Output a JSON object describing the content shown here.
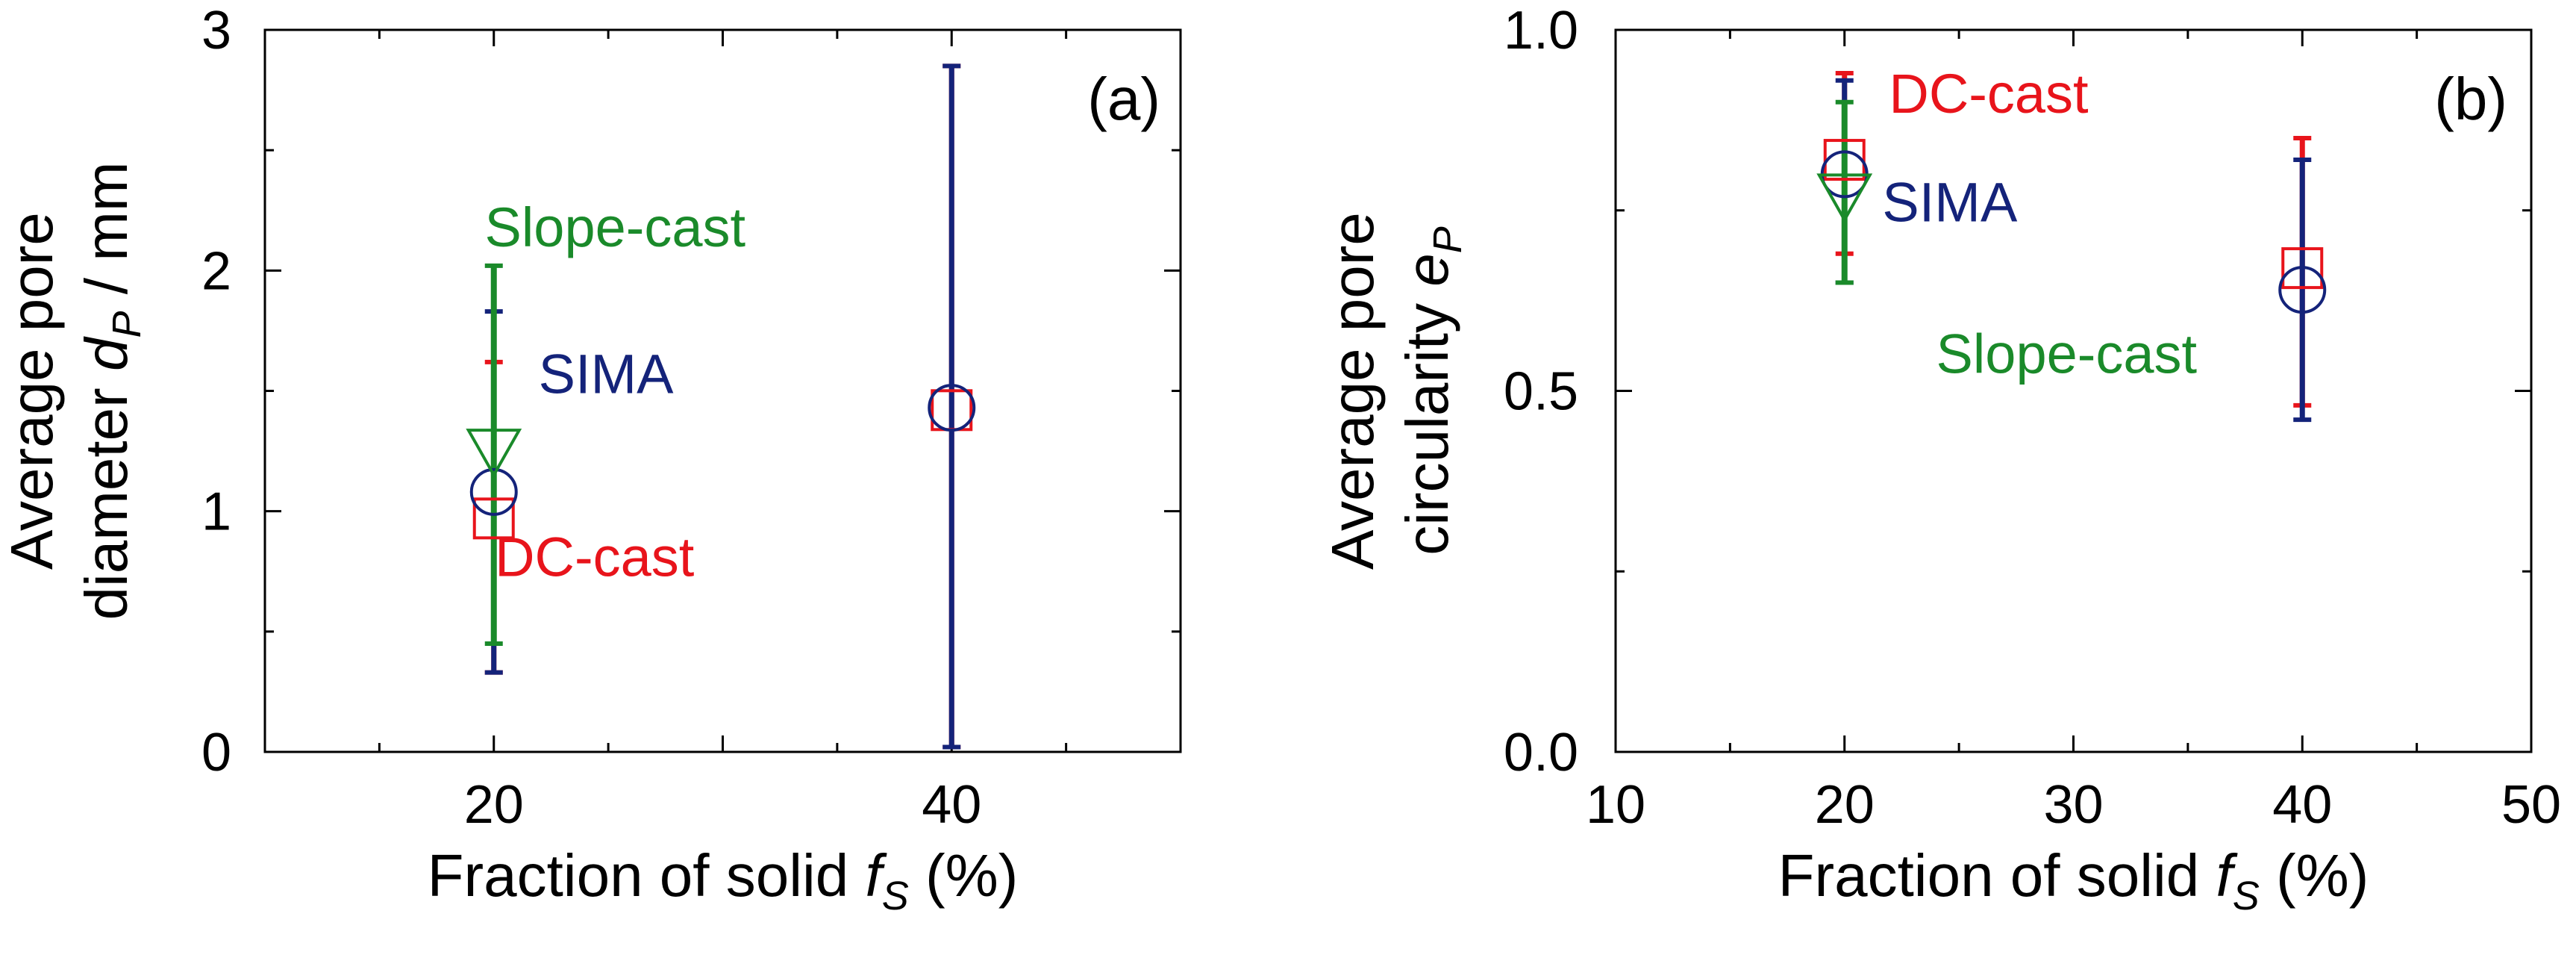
{
  "colors": {
    "DC-cast": "#e8141b",
    "SIMA": "#14237a",
    "Slope-cast": "#1a8a2a"
  },
  "chart_data": [
    {
      "type": "scatter",
      "panel_label": "(a)",
      "ylabel_main": "Average pore",
      "ylabel_sub_text": "diameter",
      "ylabel_var": "d",
      "ylabel_var_sub": "P",
      "ylabel_unit": " / mm",
      "xlabel_text": "Fraction of solid ",
      "xlabel_var": "f",
      "xlabel_var_sub": "S",
      "xlabel_unit": " (%)",
      "xlim": [
        10,
        50
      ],
      "ylim": [
        0,
        3
      ],
      "x_ticks": [
        20,
        40
      ],
      "y_ticks": [
        0,
        1,
        2,
        3
      ],
      "grid": false,
      "series": [
        {
          "name": "DC-cast",
          "marker": "square",
          "points": [
            {
              "x": 20,
              "y": 0.97,
              "err_low": 0.33,
              "err_high": 1.62
            },
            {
              "x": 40,
              "y": 1.42,
              "err_low": 0.02,
              "err_high": 2.85
            }
          ]
        },
        {
          "name": "SIMA",
          "marker": "circle",
          "points": [
            {
              "x": 20,
              "y": 1.08,
              "err_low": 0.33,
              "err_high": 1.83
            },
            {
              "x": 40,
              "y": 1.43,
              "err_low": 0.02,
              "err_high": 2.85
            }
          ]
        },
        {
          "name": "Slope-cast",
          "marker": "triangle-down",
          "points": [
            {
              "x": 20,
              "y": 1.25,
              "err_low": 0.45,
              "err_high": 2.02
            }
          ]
        }
      ],
      "annotations": [
        {
          "text": "Slope-cast",
          "series": "Slope-cast",
          "x": 25.3,
          "y": 2.1
        },
        {
          "text": "SIMA",
          "series": "SIMA",
          "x": 24.9,
          "y": 1.49
        },
        {
          "text": "DC-cast",
          "series": "DC-cast",
          "x": 24.4,
          "y": 0.73
        }
      ]
    },
    {
      "type": "scatter",
      "panel_label": "(b)",
      "ylabel_main": "Average pore",
      "ylabel_sub_text": "circularity",
      "ylabel_var": "e",
      "ylabel_var_sub": "P",
      "ylabel_unit": "",
      "xlabel_text": "Fraction of solid ",
      "xlabel_var": "f",
      "xlabel_var_sub": "S",
      "xlabel_unit": " (%)",
      "xlim": [
        10,
        50
      ],
      "ylim": [
        0.0,
        1.0
      ],
      "x_ticks": [
        10,
        20,
        30,
        40,
        50
      ],
      "y_ticks": [
        0.0,
        0.5,
        1.0
      ],
      "grid": false,
      "series": [
        {
          "name": "DC-cast",
          "marker": "square",
          "points": [
            {
              "x": 20,
              "y": 0.82,
              "err_low": 0.69,
              "err_high": 0.94
            },
            {
              "x": 40,
              "y": 0.67,
              "err_low": 0.48,
              "err_high": 0.85
            }
          ]
        },
        {
          "name": "SIMA",
          "marker": "circle",
          "points": [
            {
              "x": 20,
              "y": 0.8,
              "err_low": 0.65,
              "err_high": 0.93
            },
            {
              "x": 40,
              "y": 0.64,
              "err_low": 0.46,
              "err_high": 0.82
            }
          ]
        },
        {
          "name": "Slope-cast",
          "marker": "triangle-down",
          "points": [
            {
              "x": 20,
              "y": 0.77,
              "err_low": 0.65,
              "err_high": 0.9
            }
          ]
        }
      ],
      "annotations": [
        {
          "text": "DC-cast",
          "series": "DC-cast",
          "x": 26.3,
          "y": 0.885
        },
        {
          "text": "SIMA",
          "series": "SIMA",
          "x": 24.6,
          "y": 0.735
        },
        {
          "text": "Slope-cast",
          "series": "Slope-cast",
          "x": 29.7,
          "y": 0.525
        }
      ]
    }
  ]
}
